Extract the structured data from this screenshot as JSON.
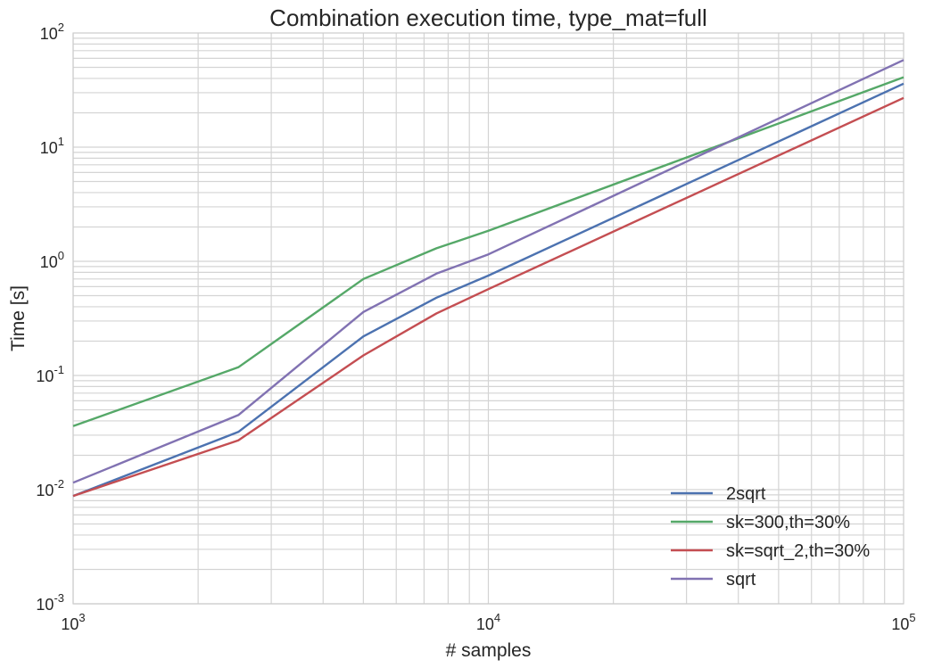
{
  "chart_data": {
    "type": "line",
    "title": "Combination execution time, type_mat=full",
    "xlabel": "# samples",
    "ylabel": "Time [s]",
    "xscale": "log",
    "yscale": "log",
    "xlim": [
      1000,
      100000
    ],
    "ylim": [
      0.001,
      100
    ],
    "x_tick_labels": [
      {
        "base": "10",
        "exp": "3"
      },
      {
        "base": "10",
        "exp": "4"
      },
      {
        "base": "10",
        "exp": "5"
      }
    ],
    "y_tick_labels": [
      {
        "base": "10",
        "exp": "-3"
      },
      {
        "base": "10",
        "exp": "-2"
      },
      {
        "base": "10",
        "exp": "-1"
      },
      {
        "base": "10",
        "exp": "0"
      },
      {
        "base": "10",
        "exp": "1"
      },
      {
        "base": "10",
        "exp": "2"
      }
    ],
    "grid": true,
    "legend_position": "bottom-right",
    "x": [
      1000,
      2500,
      5000,
      7500,
      10000,
      100000
    ],
    "series": [
      {
        "name": "2sqrt",
        "color": "#4c72b0",
        "values": [
          0.0088,
          0.032,
          0.22,
          0.48,
          0.75,
          36
        ]
      },
      {
        "name": "sk=300,th=30%",
        "color": "#55a868",
        "values": [
          0.036,
          0.118,
          0.7,
          1.3,
          1.85,
          41
        ]
      },
      {
        "name": "sk=sqrt_2,th=30%",
        "color": "#c44e52",
        "values": [
          0.0088,
          0.027,
          0.15,
          0.35,
          0.57,
          27
        ]
      },
      {
        "name": "sqrt",
        "color": "#8172b2",
        "values": [
          0.0115,
          0.045,
          0.36,
          0.78,
          1.15,
          58
        ]
      }
    ]
  }
}
